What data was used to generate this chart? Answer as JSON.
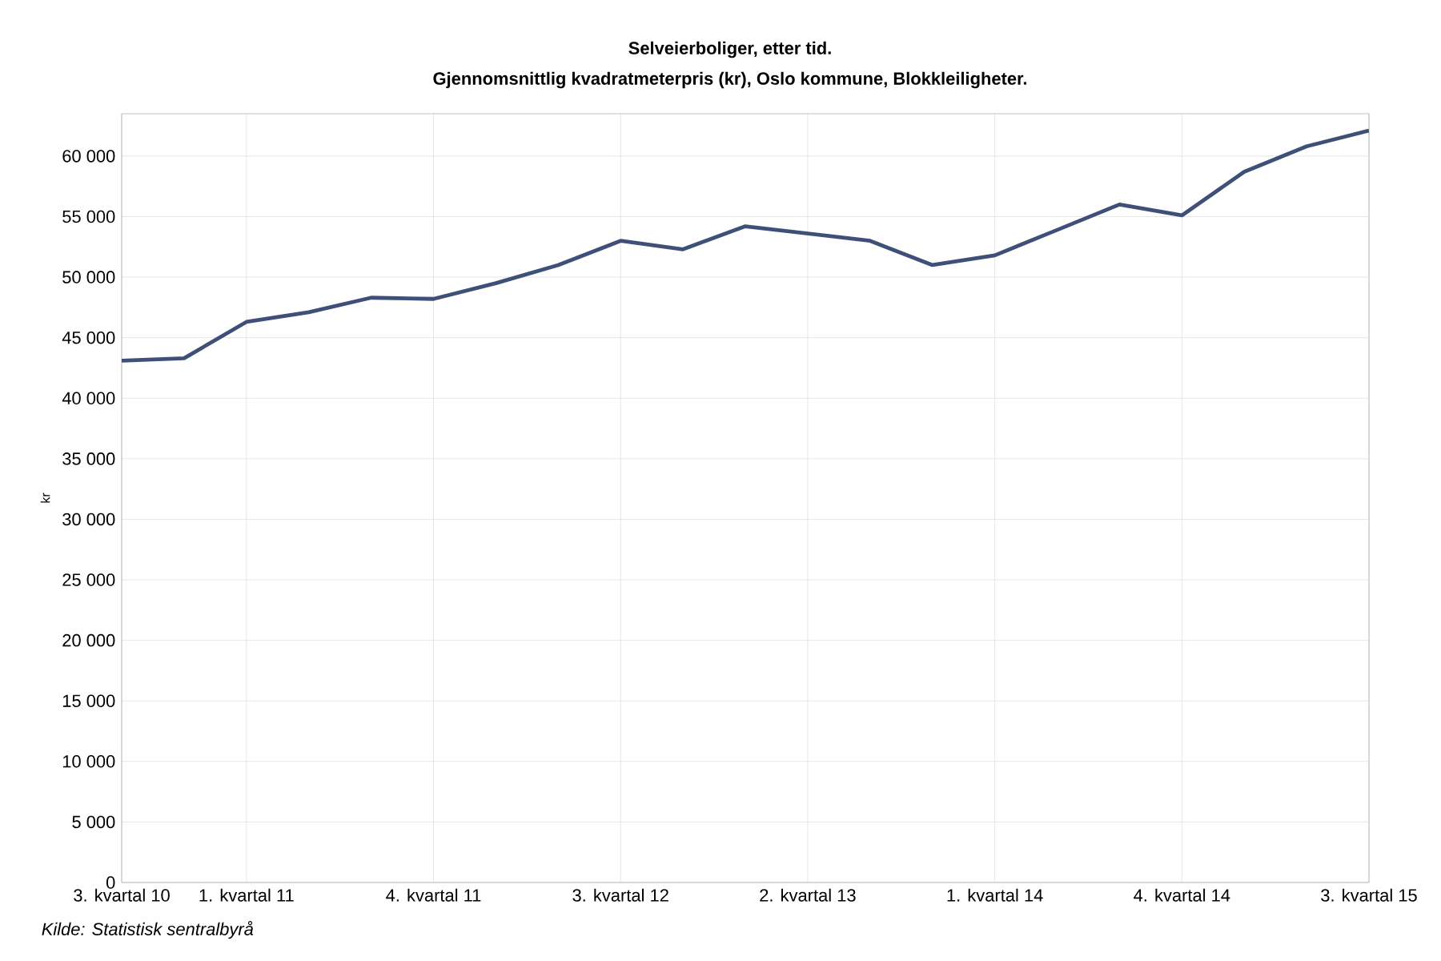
{
  "chart_data": {
    "type": "line",
    "title": "Selveierboliger, etter tid.",
    "subtitle": "Gjennomsnittlig kvadratmeterpris (kr), Oslo kommune, Blokkleiligheter.",
    "ylabel": "kr",
    "categories": [
      "3. kvartal  10",
      null,
      "1. kvartal  11",
      null,
      null,
      "4. kvartal  11",
      null,
      null,
      "3. kvartal  12",
      null,
      null,
      "2. kvartal  13",
      null,
      null,
      "1. kvartal  14",
      null,
      null,
      "4. kvartal  14",
      null,
      null,
      "3. kvartal  15"
    ],
    "series": [
      {
        "color": "#3f5078",
        "values": [
          43100,
          43300,
          46300,
          47100,
          48300,
          48200,
          49500,
          51000,
          53000,
          52300,
          54200,
          53600,
          53000,
          51000,
          51800,
          53900,
          56000,
          55100,
          58700,
          60800,
          62100
        ]
      }
    ],
    "ylim": [
      0,
      63500
    ],
    "yticks": [
      0,
      {
        "value": 5000,
        "label": "5 000"
      },
      {
        "value": 10000,
        "label": "10 000"
      },
      {
        "value": 15000,
        "label": "15 000"
      },
      {
        "value": 20000,
        "label": "20 000"
      },
      {
        "value": 25000,
        "label": "25 000"
      },
      {
        "value": 30000,
        "label": "30 000"
      },
      {
        "value": 35000,
        "label": "35 000"
      },
      {
        "value": 40000,
        "label": "40 000"
      },
      {
        "value": 45000,
        "label": "45 000"
      },
      {
        "value": 50000,
        "label": "50 000"
      },
      {
        "value": 55000,
        "label": "55 000"
      },
      {
        "value": 60000,
        "label": "60 000"
      }
    ],
    "grid": true,
    "marker": "none",
    "line_style": "solid",
    "annotations": [
      "*Kilde: Statistisk sentralbyrå*"
    ]
  }
}
